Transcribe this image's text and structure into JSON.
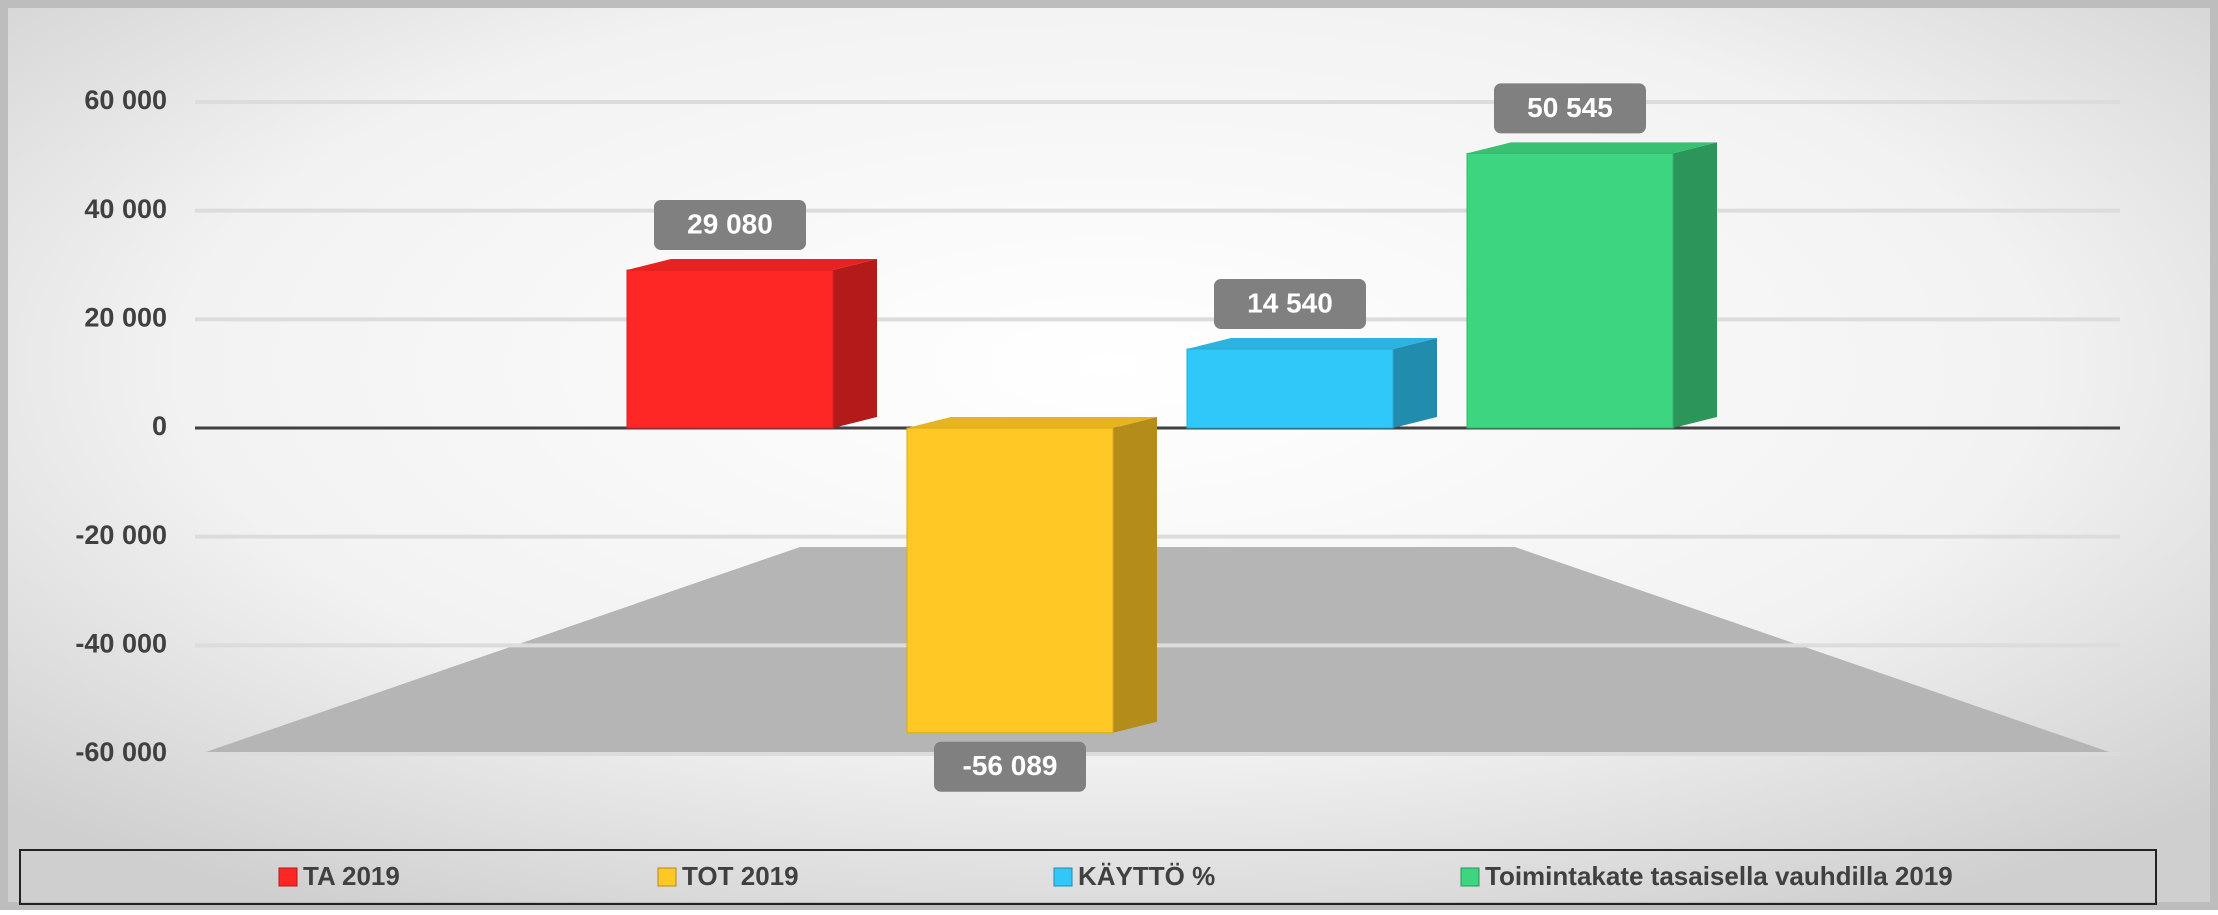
{
  "chart_data": {
    "type": "bar3d",
    "categories": [
      null
    ],
    "series": [
      {
        "name": "TA 2019",
        "color": "#ff2626",
        "values": [
          29080
        ],
        "value_labels": [
          "29 080"
        ]
      },
      {
        "name": "TOT 2019",
        "color": "#ffc825",
        "values": [
          -56089
        ],
        "value_labels": [
          "-56 089"
        ]
      },
      {
        "name": "KÄYTTÖ %",
        "color": "#30c8f8",
        "values": [
          14540
        ],
        "value_labels": [
          "14 540"
        ]
      },
      {
        "name": "Toimintakate tasaisella vauhdilla 2019",
        "color": "#3ed580",
        "values": [
          50545
        ],
        "value_labels": [
          "50 545"
        ]
      }
    ],
    "ylim": [
      -60000,
      60000
    ],
    "yticks": [
      {
        "value": -60000,
        "label": "-60 000"
      },
      {
        "value": -40000,
        "label": "-40 000"
      },
      {
        "value": -20000,
        "label": "-20 000"
      },
      0,
      {
        "value": 20000,
        "label": "20 000"
      },
      {
        "value": 40000,
        "label": "40 000"
      },
      {
        "value": 60000,
        "label": "60 000"
      }
    ],
    "grid": true,
    "legend": "bottom"
  }
}
